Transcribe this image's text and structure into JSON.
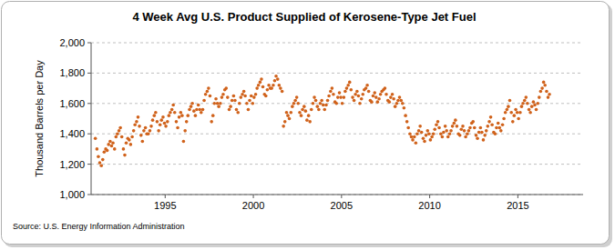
{
  "chart_data": {
    "type": "scatter",
    "title": "4 Week Avg U.S. Product Supplied of Kerosene-Type Jet Fuel",
    "y_label": "Thousand Barrels per Day",
    "source": "Source: U.S. Energy Information Administration",
    "color": "#d0621b",
    "marker": "circle",
    "grid": true,
    "xlim": [
      1990.8,
      2018.7
    ],
    "xticks": [
      1995,
      2000,
      2005,
      2010,
      2015
    ],
    "ylim": [
      1000,
      2000
    ],
    "yticks": [
      {
        "value": 1000,
        "label": "1,000"
      },
      {
        "value": 1200,
        "label": "1,200"
      },
      {
        "value": 1400,
        "label": "1,400"
      },
      {
        "value": 1600,
        "label": "1,600"
      },
      {
        "value": 1800,
        "label": "1,800"
      },
      {
        "value": 2000,
        "label": "2,000"
      }
    ],
    "x": [
      1991.04,
      1991.13,
      1991.21,
      1991.29,
      1991.38,
      1991.46,
      1991.54,
      1991.63,
      1991.71,
      1991.79,
      1991.88,
      1991.96,
      1992.04,
      1992.13,
      1992.21,
      1992.29,
      1992.38,
      1992.46,
      1992.54,
      1992.63,
      1992.71,
      1992.79,
      1992.88,
      1992.96,
      1993.04,
      1993.13,
      1993.21,
      1993.29,
      1993.38,
      1993.46,
      1993.54,
      1993.63,
      1993.71,
      1993.79,
      1993.88,
      1993.96,
      1994.04,
      1994.13,
      1994.21,
      1994.29,
      1994.38,
      1994.46,
      1994.54,
      1994.63,
      1994.71,
      1994.79,
      1994.88,
      1994.96,
      1995.04,
      1995.13,
      1995.21,
      1995.29,
      1995.38,
      1995.46,
      1995.54,
      1995.63,
      1995.71,
      1995.79,
      1995.88,
      1995.96,
      1996.04,
      1996.13,
      1996.21,
      1996.29,
      1996.38,
      1996.46,
      1996.54,
      1996.63,
      1996.71,
      1996.79,
      1996.88,
      1996.96,
      1997.04,
      1997.13,
      1997.21,
      1997.29,
      1997.38,
      1997.46,
      1997.54,
      1997.63,
      1997.71,
      1997.79,
      1997.88,
      1997.96,
      1998.04,
      1998.13,
      1998.21,
      1998.29,
      1998.38,
      1998.46,
      1998.54,
      1998.63,
      1998.71,
      1998.79,
      1998.88,
      1998.96,
      1999.04,
      1999.13,
      1999.21,
      1999.29,
      1999.38,
      1999.46,
      1999.54,
      1999.63,
      1999.71,
      1999.79,
      1999.88,
      1999.96,
      2000.04,
      2000.13,
      2000.21,
      2000.29,
      2000.38,
      2000.46,
      2000.54,
      2000.63,
      2000.71,
      2000.79,
      2000.88,
      2000.96,
      2001.04,
      2001.13,
      2001.21,
      2001.29,
      2001.38,
      2001.46,
      2001.54,
      2001.63,
      2001.71,
      2001.79,
      2001.88,
      2001.96,
      2002.04,
      2002.13,
      2002.21,
      2002.29,
      2002.38,
      2002.46,
      2002.54,
      2002.63,
      2002.71,
      2002.79,
      2002.88,
      2002.96,
      2003.04,
      2003.13,
      2003.21,
      2003.29,
      2003.38,
      2003.46,
      2003.54,
      2003.63,
      2003.71,
      2003.79,
      2003.88,
      2003.96,
      2004.04,
      2004.13,
      2004.21,
      2004.29,
      2004.38,
      2004.46,
      2004.54,
      2004.63,
      2004.71,
      2004.79,
      2004.88,
      2004.96,
      2005.04,
      2005.13,
      2005.21,
      2005.29,
      2005.38,
      2005.46,
      2005.54,
      2005.63,
      2005.71,
      2005.79,
      2005.88,
      2005.96,
      2006.04,
      2006.13,
      2006.21,
      2006.29,
      2006.38,
      2006.46,
      2006.54,
      2006.63,
      2006.71,
      2006.79,
      2006.88,
      2006.96,
      2007.04,
      2007.13,
      2007.21,
      2007.29,
      2007.38,
      2007.46,
      2007.54,
      2007.63,
      2007.71,
      2007.79,
      2007.88,
      2007.96,
      2008.04,
      2008.13,
      2008.21,
      2008.29,
      2008.38,
      2008.46,
      2008.54,
      2008.63,
      2008.71,
      2008.79,
      2008.88,
      2008.96,
      2009.04,
      2009.13,
      2009.21,
      2009.29,
      2009.38,
      2009.46,
      2009.54,
      2009.63,
      2009.71,
      2009.79,
      2009.88,
      2009.96,
      2010.04,
      2010.13,
      2010.21,
      2010.29,
      2010.38,
      2010.46,
      2010.54,
      2010.63,
      2010.71,
      2010.79,
      2010.88,
      2010.96,
      2011.04,
      2011.13,
      2011.21,
      2011.29,
      2011.38,
      2011.46,
      2011.54,
      2011.63,
      2011.71,
      2011.79,
      2011.88,
      2011.96,
      2012.04,
      2012.13,
      2012.21,
      2012.29,
      2012.38,
      2012.46,
      2012.54,
      2012.63,
      2012.71,
      2012.79,
      2012.88,
      2012.96,
      2013.04,
      2013.13,
      2013.21,
      2013.29,
      2013.38,
      2013.46,
      2013.54,
      2013.63,
      2013.71,
      2013.79,
      2013.88,
      2013.96,
      2014.04,
      2014.13,
      2014.21,
      2014.29,
      2014.38,
      2014.46,
      2014.54,
      2014.63,
      2014.71,
      2014.79,
      2014.88,
      2014.96,
      2015.04,
      2015.13,
      2015.21,
      2015.29,
      2015.38,
      2015.46,
      2015.54,
      2015.63,
      2015.71,
      2015.79,
      2015.88,
      2015.96,
      2016.04,
      2016.13,
      2016.21,
      2016.29,
      2016.38,
      2016.46,
      2016.54,
      2016.63,
      2016.71,
      2016.79
    ],
    "values": [
      1370,
      1300,
      1250,
      1210,
      1190,
      1230,
      1280,
      1300,
      1290,
      1330,
      1350,
      1320,
      1340,
      1300,
      1380,
      1400,
      1420,
      1440,
      1380,
      1300,
      1260,
      1340,
      1370,
      1360,
      1330,
      1380,
      1420,
      1460,
      1480,
      1510,
      1450,
      1390,
      1350,
      1420,
      1440,
      1400,
      1400,
      1420,
      1450,
      1490,
      1520,
      1540,
      1480,
      1420,
      1460,
      1490,
      1510,
      1470,
      1450,
      1480,
      1520,
      1540,
      1560,
      1590,
      1540,
      1480,
      1440,
      1510,
      1540,
      1520,
      1350,
      1420,
      1480,
      1520,
      1560,
      1580,
      1600,
      1550,
      1520,
      1560,
      1590,
      1560,
      1540,
      1560,
      1620,
      1660,
      1680,
      1700,
      1650,
      1480,
      1520,
      1600,
      1630,
      1600,
      1580,
      1600,
      1640,
      1660,
      1690,
      1700,
      1640,
      1560,
      1580,
      1620,
      1650,
      1620,
      1560,
      1540,
      1600,
      1640,
      1660,
      1680,
      1650,
      1600,
      1560,
      1620,
      1650,
      1600,
      1640,
      1660,
      1700,
      1720,
      1740,
      1760,
      1710,
      1660,
      1650,
      1690,
      1720,
      1700,
      1700,
      1720,
      1750,
      1780,
      1760,
      1720,
      1700,
      1680,
      1450,
      1480,
      1540,
      1520,
      1500,
      1540,
      1580,
      1600,
      1620,
      1640,
      1600,
      1540,
      1520,
      1560,
      1580,
      1550,
      1490,
      1520,
      1480,
      1560,
      1600,
      1640,
      1620,
      1580,
      1560,
      1600,
      1620,
      1590,
      1560,
      1590,
      1620,
      1650,
      1680,
      1700,
      1660,
      1610,
      1600,
      1640,
      1670,
      1640,
      1600,
      1640,
      1680,
      1700,
      1720,
      1740,
      1690,
      1640,
      1620,
      1660,
      1680,
      1650,
      1600,
      1630,
      1660,
      1690,
      1700,
      1720,
      1680,
      1620,
      1610,
      1650,
      1670,
      1640,
      1610,
      1630,
      1660,
      1680,
      1690,
      1700,
      1660,
      1620,
      1610,
      1640,
      1660,
      1630,
      1580,
      1600,
      1620,
      1640,
      1620,
      1600,
      1570,
      1520,
      1480,
      1440,
      1400,
      1380,
      1360,
      1380,
      1340,
      1400,
      1420,
      1450,
      1410,
      1370,
      1350,
      1390,
      1420,
      1400,
      1360,
      1380,
      1400,
      1430,
      1460,
      1480,
      1440,
      1400,
      1380,
      1410,
      1450,
      1420,
      1380,
      1400,
      1420,
      1450,
      1470,
      1490,
      1450,
      1400,
      1390,
      1430,
      1450,
      1420,
      1380,
      1400,
      1420,
      1440,
      1470,
      1480,
      1440,
      1390,
      1370,
      1410,
      1440,
      1410,
      1360,
      1390,
      1420,
      1450,
      1480,
      1510,
      1460,
      1410,
      1400,
      1440,
      1470,
      1440,
      1420,
      1460,
      1500,
      1540,
      1560,
      1580,
      1620,
      1540,
      1480,
      1520,
      1560,
      1540,
      1500,
      1540,
      1580,
      1600,
      1620,
      1640,
      1600,
      1560,
      1540,
      1580,
      1610,
      1590,
      1560,
      1600,
      1640,
      1680,
      1700,
      1740,
      1720,
      1680,
      1640,
      1660
    ]
  }
}
